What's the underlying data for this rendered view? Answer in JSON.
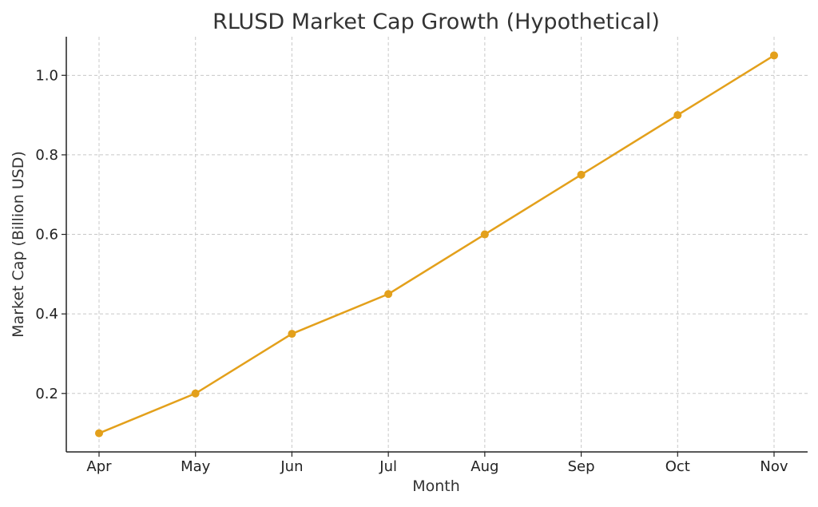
{
  "chart_data": {
    "type": "line",
    "title": "RLUSD Market Cap Growth (Hypothetical)",
    "xlabel": "Month",
    "ylabel": "Market Cap (Billion USD)",
    "categories": [
      "Apr",
      "May",
      "Jun",
      "Jul",
      "Aug",
      "Sep",
      "Oct",
      "Nov"
    ],
    "series": [
      {
        "values": [
          0.1,
          0.2,
          0.35,
          0.45,
          0.6,
          0.75,
          0.9,
          1.05
        ],
        "color": "#e3a01b",
        "marker": "circle"
      }
    ],
    "ylim": [
      0.053,
      1.097
    ],
    "yticks": [
      0.2,
      0.4,
      0.6,
      0.8,
      1.0
    ],
    "ytick_labels": [
      "0.2",
      "0.4",
      "0.6",
      "0.8",
      "1.0"
    ],
    "grid": true,
    "grid_style": "dashed",
    "colors": {
      "line": "#e3a01b",
      "grid": "#c8c8c8",
      "axis": "#222222",
      "text": "#333333"
    }
  }
}
